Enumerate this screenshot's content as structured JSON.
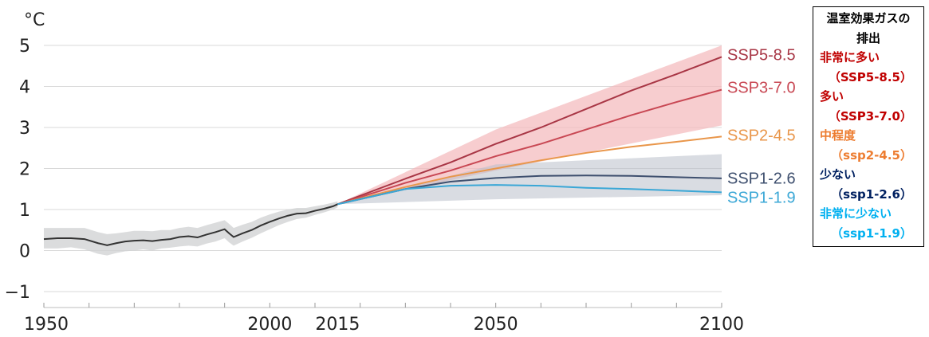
{
  "chart_data": {
    "type": "line",
    "unit_label": "°C",
    "ylim": [
      -1,
      5
    ],
    "yticks": [
      -1,
      0,
      1,
      2,
      3,
      4,
      5
    ],
    "xlim": [
      1950,
      2100
    ],
    "xticks": [
      1950,
      2000,
      2015,
      2050,
      2100
    ],
    "grid": true,
    "historical": {
      "color": "#333333",
      "band_color": "#cfd0d2",
      "x": [
        1950,
        1953,
        1956,
        1959,
        1962,
        1964,
        1966,
        1968,
        1970,
        1972,
        1974,
        1976,
        1978,
        1980,
        1982,
        1984,
        1986,
        1988,
        1990,
        1991,
        1992,
        1994,
        1996,
        1998,
        2000,
        2002,
        2004,
        2006,
        2008,
        2010,
        2012,
        2014,
        2015
      ],
      "y": [
        0.28,
        0.3,
        0.3,
        0.28,
        0.18,
        0.13,
        0.18,
        0.22,
        0.24,
        0.25,
        0.23,
        0.26,
        0.28,
        0.33,
        0.35,
        0.32,
        0.39,
        0.45,
        0.52,
        0.42,
        0.33,
        0.42,
        0.5,
        0.61,
        0.7,
        0.78,
        0.85,
        0.9,
        0.91,
        0.97,
        1.02,
        1.08,
        1.13
      ],
      "lower": [
        0.05,
        0.05,
        0.08,
        0.03,
        -0.08,
        -0.12,
        -0.06,
        -0.02,
        0.0,
        0.03,
        0.0,
        0.05,
        0.07,
        0.1,
        0.12,
        0.1,
        0.17,
        0.22,
        0.3,
        0.2,
        0.12,
        0.22,
        0.31,
        0.42,
        0.52,
        0.62,
        0.7,
        0.77,
        0.8,
        0.87,
        0.93,
        1.0,
        1.05
      ],
      "upper": [
        0.55,
        0.55,
        0.55,
        0.55,
        0.45,
        0.4,
        0.42,
        0.45,
        0.48,
        0.48,
        0.47,
        0.5,
        0.5,
        0.55,
        0.58,
        0.55,
        0.62,
        0.68,
        0.74,
        0.65,
        0.55,
        0.63,
        0.7,
        0.8,
        0.88,
        0.95,
        1.0,
        1.04,
        1.04,
        1.08,
        1.12,
        1.17,
        1.2
      ]
    },
    "series": [
      {
        "name": "SSP5-8.5",
        "color": "#a83645",
        "x": [
          2015,
          2030,
          2040,
          2050,
          2060,
          2070,
          2080,
          2090,
          2100
        ],
        "y": [
          1.13,
          1.75,
          2.15,
          2.6,
          3.0,
          3.45,
          3.9,
          4.3,
          4.72
        ]
      },
      {
        "name": "SSP3-7.0",
        "color": "#c84753",
        "x": [
          2015,
          2030,
          2040,
          2050,
          2060,
          2070,
          2080,
          2090,
          2100
        ],
        "y": [
          1.13,
          1.65,
          1.95,
          2.3,
          2.6,
          2.95,
          3.3,
          3.62,
          3.92
        ]
      },
      {
        "name": "SSP2-4.5",
        "color": "#e9964a",
        "x": [
          2015,
          2030,
          2040,
          2050,
          2060,
          2070,
          2080,
          2090,
          2100
        ],
        "y": [
          1.13,
          1.55,
          1.8,
          2.0,
          2.2,
          2.38,
          2.53,
          2.65,
          2.78
        ]
      },
      {
        "name": "SSP1-2.6",
        "color": "#3e4f6e",
        "x": [
          2015,
          2030,
          2040,
          2050,
          2060,
          2070,
          2080,
          2090,
          2100
        ],
        "y": [
          1.13,
          1.5,
          1.68,
          1.77,
          1.82,
          1.83,
          1.82,
          1.79,
          1.76
        ]
      },
      {
        "name": "SSP1-1.9",
        "color": "#3aa7d6",
        "x": [
          2015,
          2030,
          2040,
          2050,
          2060,
          2070,
          2080,
          2090,
          2100
        ],
        "y": [
          1.13,
          1.5,
          1.58,
          1.6,
          1.58,
          1.53,
          1.5,
          1.46,
          1.42
        ]
      }
    ],
    "bands": [
      {
        "color": "#f3b8bb",
        "opacity": 0.7,
        "x": [
          2015,
          2050,
          2100
        ],
        "lower": [
          1.13,
          1.95,
          3.05
        ],
        "upper": [
          1.13,
          2.95,
          5.0
        ]
      },
      {
        "color": "#b9c0cb",
        "opacity": 0.55,
        "x": [
          2015,
          2050,
          2100
        ],
        "lower": [
          1.13,
          1.25,
          1.35
        ],
        "upper": [
          1.13,
          2.1,
          2.35
        ]
      }
    ]
  },
  "legend": {
    "title_line1": "温室効果ガスの",
    "title_line2": "排出",
    "entries": [
      {
        "name": "非常に多い",
        "code": "（SSP5-8.5）",
        "color": "#c00000"
      },
      {
        "name": "多い",
        "code": "（SSP3-7.0）",
        "color": "#c00000"
      },
      {
        "name": "中程度",
        "code": "（ssp2-4.5）",
        "color": "#ed7d31"
      },
      {
        "name": "少ない",
        "code": "（ssp1-2.6）",
        "color": "#002060"
      },
      {
        "name": "非常に少ない",
        "code": "（ssp1-1.9）",
        "color": "#00b0f0"
      }
    ]
  }
}
